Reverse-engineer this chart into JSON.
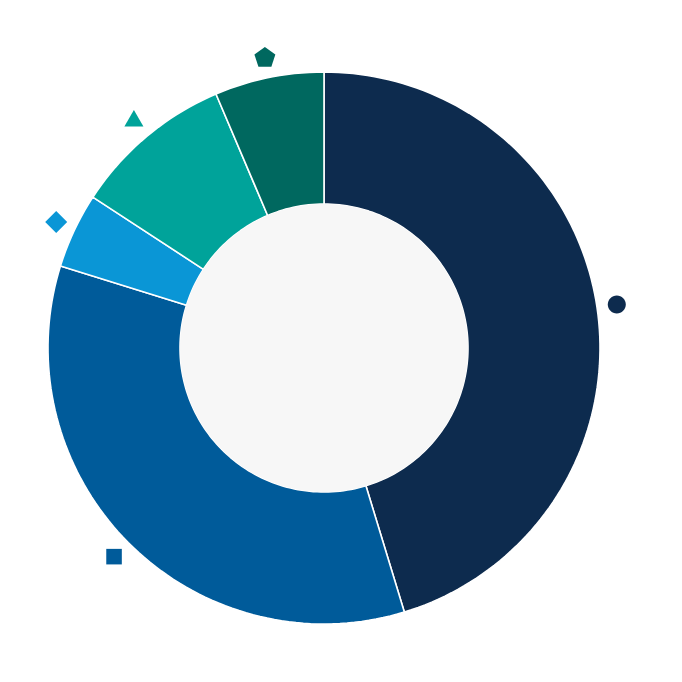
{
  "chart_data": {
    "type": "donut",
    "categories": [
      null,
      null,
      null,
      null,
      null
    ],
    "values": [
      45.3,
      34.5,
      4.4,
      9.4,
      6.4
    ],
    "colors": [
      "#0d2b4e",
      "#005b9a",
      "#0a96d6",
      "#00a39a",
      "#00685f"
    ]
  }
}
